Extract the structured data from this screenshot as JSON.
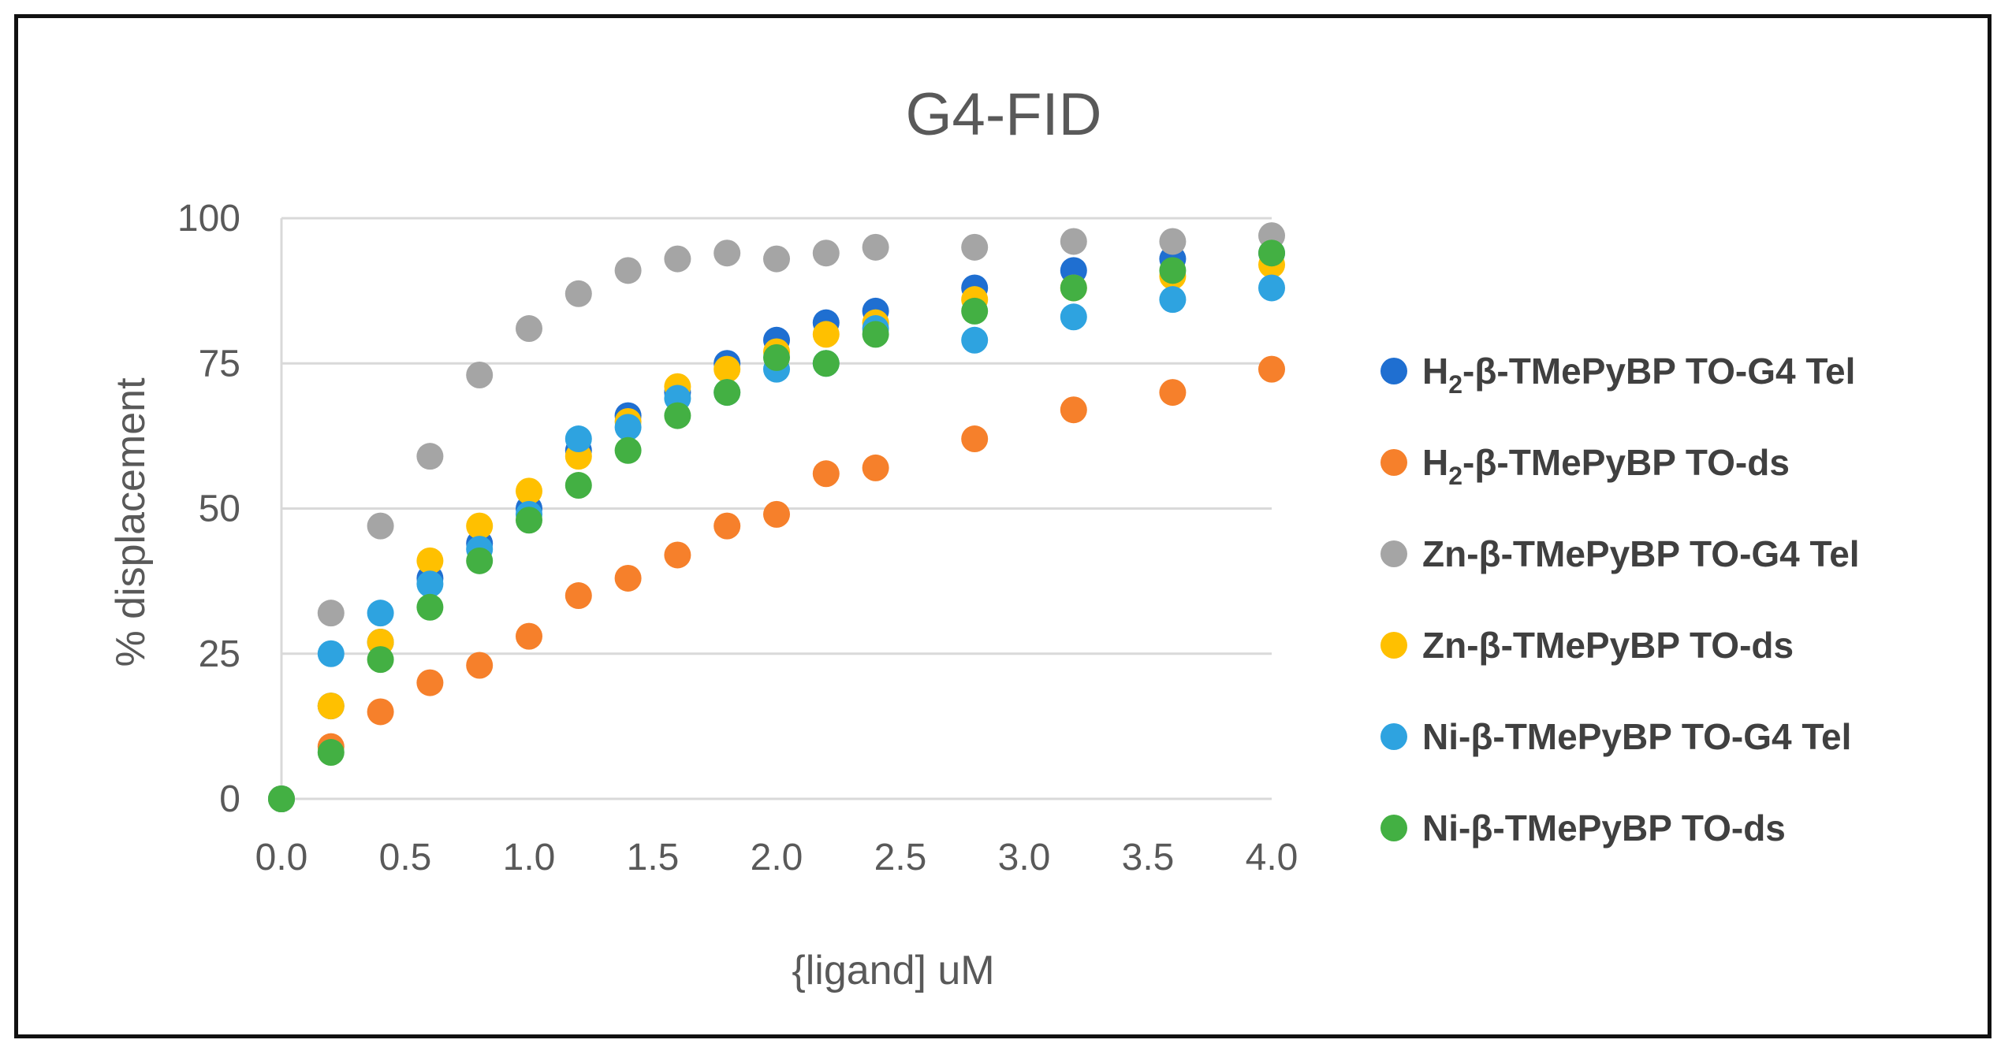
{
  "chart_data": {
    "type": "scatter",
    "title": "G4-FID",
    "xlabel": "{ligand] uM",
    "ylabel": "% displacement",
    "xlim": [
      0,
      4
    ],
    "ylim": [
      0,
      100
    ],
    "x_ticks": [
      "0.0",
      "0.5",
      "1.0",
      "1.5",
      "2.0",
      "2.5",
      "3.0",
      "3.5",
      "4.0"
    ],
    "y_ticks": [
      "0",
      "25",
      "50",
      "75",
      "100"
    ],
    "grid": "horizontal",
    "legend_position": "right",
    "series": [
      {
        "name": "H2-β-TMePyBP TO-G4 Tel",
        "legend_prefix": "H",
        "legend_sub": "2",
        "legend_rest": "-β-TMePyBP TO-G4 Tel",
        "color": "#1f6fd1",
        "x": [
          0,
          0.2,
          0.4,
          0.6,
          0.8,
          1.0,
          1.2,
          1.4,
          1.6,
          1.8,
          2.0,
          2.2,
          2.4,
          2.8,
          3.2,
          3.6,
          4.0
        ],
        "y": [
          0,
          16,
          27,
          38,
          44,
          50,
          60,
          66,
          70,
          75,
          79,
          82,
          84,
          88,
          91,
          93,
          94
        ]
      },
      {
        "name": "H2-β-TMePyBP TO-ds",
        "legend_prefix": "H",
        "legend_sub": "2",
        "legend_rest": "-β-TMePyBP TO-ds",
        "color": "#f6802b",
        "x": [
          0,
          0.2,
          0.4,
          0.6,
          0.8,
          1.0,
          1.2,
          1.4,
          1.6,
          1.8,
          2.0,
          2.2,
          2.4,
          2.8,
          3.2,
          3.6,
          4.0
        ],
        "y": [
          0,
          9,
          15,
          20,
          23,
          28,
          35,
          38,
          42,
          47,
          49,
          56,
          57,
          62,
          67,
          70,
          74
        ]
      },
      {
        "name": "Zn-β-TMePyBP TO-G4 Tel",
        "legend_prefix": "Zn-β-TMePyBP TO-G4 Tel",
        "legend_sub": "",
        "legend_rest": "",
        "color": "#a5a5a5",
        "x": [
          0,
          0.2,
          0.4,
          0.6,
          0.8,
          1.0,
          1.2,
          1.4,
          1.6,
          1.8,
          2.0,
          2.2,
          2.4,
          2.8,
          3.2,
          3.6,
          4.0
        ],
        "y": [
          0,
          32,
          47,
          59,
          73,
          81,
          87,
          91,
          93,
          94,
          93,
          94,
          95,
          95,
          96,
          96,
          97
        ]
      },
      {
        "name": "Zn-β-TMePyBP TO-ds",
        "legend_prefix": "Zn-β-TMePyBP TO-ds",
        "legend_sub": "",
        "legend_rest": "",
        "color": "#ffc000",
        "x": [
          0,
          0.2,
          0.4,
          0.6,
          0.8,
          1.0,
          1.2,
          1.4,
          1.6,
          1.8,
          2.0,
          2.2,
          2.4,
          2.8,
          3.2,
          3.6,
          4.0
        ],
        "y": [
          0,
          16,
          27,
          41,
          47,
          53,
          59,
          65,
          71,
          74,
          77,
          80,
          82,
          86,
          88,
          90,
          92
        ]
      },
      {
        "name": "Ni-β-TMePyBP TO-G4 Tel",
        "legend_prefix": "Ni-β-TMePyBP TO-G4 Tel",
        "legend_sub": "",
        "legend_rest": "",
        "color": "#2ea3e0",
        "x": [
          0,
          0.2,
          0.4,
          0.6,
          0.8,
          1.0,
          1.2,
          1.4,
          1.6,
          1.8,
          2.0,
          2.2,
          2.4,
          2.8,
          3.2,
          3.6,
          4.0
        ],
        "y": [
          0,
          25,
          32,
          37,
          43,
          49,
          62,
          64,
          69,
          70,
          74,
          75,
          81,
          79,
          83,
          86,
          88
        ]
      },
      {
        "name": "Ni-β-TMePyBP TO-ds",
        "legend_prefix": "Ni-β-TMePyBP TO-ds",
        "legend_sub": "",
        "legend_rest": "",
        "color": "#43b043",
        "x": [
          0,
          0.2,
          0.4,
          0.6,
          0.8,
          1.0,
          1.2,
          1.4,
          1.6,
          1.8,
          2.0,
          2.2,
          2.4,
          2.8,
          3.2,
          3.6,
          4.0
        ],
        "y": [
          0,
          8,
          24,
          33,
          41,
          48,
          54,
          60,
          66,
          70,
          76,
          75,
          80,
          84,
          88,
          91,
          94
        ]
      }
    ]
  }
}
